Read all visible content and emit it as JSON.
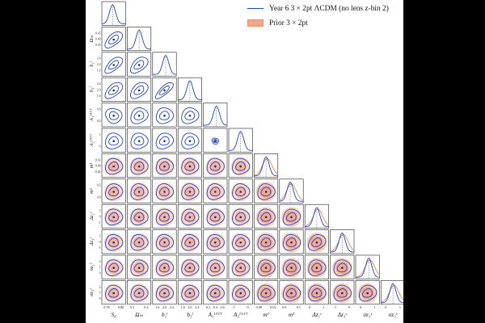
{
  "legend": {
    "items": [
      {
        "label": "Year 6 3 × 2pt ΛCDM (no lens z-bin 2)",
        "color": "#2343c4",
        "kind": "line"
      },
      {
        "label": "Prior 3 × 2pt",
        "color": "#f2a98a",
        "kind": "patch"
      }
    ]
  },
  "chart_data": {
    "type": "corner",
    "parameters": [
      "S8",
      "Ωm",
      "b1",
      "b3",
      "A1^IATT",
      "A2^IATT",
      "m^1",
      "m^3",
      "Δz^1",
      "Δz^3",
      "σz^1",
      "σz^3"
    ],
    "axis_labels": [
      "S₈",
      "Ωₘ",
      "b₁ˡ",
      "b₃ˡ",
      "A₁ᴵᴬᵀᵀ",
      "A₂ᴵᴬᵀᵀ",
      "m¹",
      "m³",
      "Δz₁ˢ",
      "Δz₃ˢ",
      "σz₁ˢ",
      "σz₃ˢ"
    ],
    "tick_labels": [
      [
        "0.78",
        "0.80"
      ],
      [
        "0.3",
        "0.4"
      ],
      [
        "1.6",
        "2.0",
        "2.4"
      ],
      [
        "1.6",
        "2.0",
        "2.4"
      ],
      [
        "0.2",
        "0.4",
        "0.6"
      ],
      [
        "-1",
        "0"
      ],
      [
        "0.00",
        "0.02"
      ],
      [
        "0.0",
        "0.1"
      ],
      [
        "0",
        "1"
      ],
      [
        "-1",
        "0"
      ],
      [
        "0",
        "1"
      ],
      [
        "0",
        "1"
      ]
    ],
    "y_tick_labels": [
      [],
      [
        "0.45",
        "0.40",
        "0.35"
      ],
      [
        "2.4",
        "2.0",
        "1.6"
      ],
      [
        "2.4",
        "2.0",
        "1.6"
      ],
      [
        "0.6",
        "0.4"
      ],
      [
        "1",
        "0"
      ],
      [
        "0.02",
        "0.00",
        "-0.02"
      ],
      [
        "0.2",
        "0.0"
      ],
      [
        "1",
        "0",
        "-1"
      ],
      [
        "1",
        "0",
        "-1"
      ],
      [
        "2",
        "1",
        "0"
      ],
      [
        "2",
        "1",
        "0"
      ]
    ],
    "priors_on": [
      6,
      7,
      8,
      9,
      10,
      11
    ],
    "diagonal_peak": [
      0.45,
      0.5,
      0.55,
      0.5,
      0.55,
      0.5,
      0.5,
      0.45,
      0.5,
      0.5,
      0.55,
      0.5
    ],
    "correlations": [
      [
        0.0,
        0.55,
        0.6,
        0.5,
        -0.1,
        0.0,
        0.0,
        0.05,
        0.0,
        0.0,
        0.0,
        0.0
      ],
      [
        0.55,
        0.0,
        0.45,
        0.4,
        0.1,
        0.0,
        0.0,
        0.0,
        0.0,
        0.0,
        0.0,
        0.0
      ],
      [
        0.6,
        0.45,
        0.0,
        0.75,
        0.0,
        0.1,
        0.0,
        0.0,
        0.05,
        0.0,
        0.0,
        0.0
      ],
      [
        0.5,
        0.4,
        0.75,
        0.0,
        0.05,
        0.0,
        0.0,
        0.0,
        0.0,
        0.0,
        0.0,
        0.0
      ],
      [
        -0.1,
        0.1,
        0.0,
        0.05,
        0.0,
        -0.85,
        0.0,
        0.0,
        0.0,
        0.0,
        0.0,
        0.0
      ],
      [
        0.0,
        0.0,
        0.1,
        0.0,
        -0.85,
        0.0,
        0.0,
        0.0,
        0.0,
        0.0,
        0.0,
        0.0
      ],
      [
        0.0,
        0.0,
        0.0,
        0.0,
        0.0,
        0.0,
        0.0,
        0.0,
        0.0,
        0.0,
        0.0,
        0.0
      ],
      [
        0.05,
        0.0,
        0.0,
        0.0,
        0.0,
        0.0,
        0.0,
        0.0,
        0.1,
        0.0,
        0.0,
        0.0
      ],
      [
        0.0,
        0.0,
        0.05,
        0.0,
        0.0,
        0.0,
        0.0,
        0.1,
        0.0,
        0.2,
        0.0,
        0.0
      ],
      [
        0.0,
        0.0,
        0.0,
        0.0,
        0.0,
        0.0,
        0.0,
        0.0,
        0.2,
        0.0,
        0.0,
        0.0
      ],
      [
        0.0,
        0.0,
        0.0,
        0.0,
        0.0,
        0.0,
        0.0,
        0.0,
        0.0,
        0.0,
        0.0,
        0.1
      ],
      [
        0.0,
        0.0,
        0.0,
        0.0,
        0.0,
        0.0,
        0.0,
        0.0,
        0.0,
        0.0,
        0.1,
        0.0
      ]
    ],
    "series": [
      {
        "name": "Year 6 3 × 2pt ΛCDM (no lens z-bin 2)",
        "color": "#2343c4"
      },
      {
        "name": "Prior 3 × 2pt",
        "color": "#f2a98a"
      }
    ],
    "grid": false,
    "legend_position": "top-right"
  }
}
